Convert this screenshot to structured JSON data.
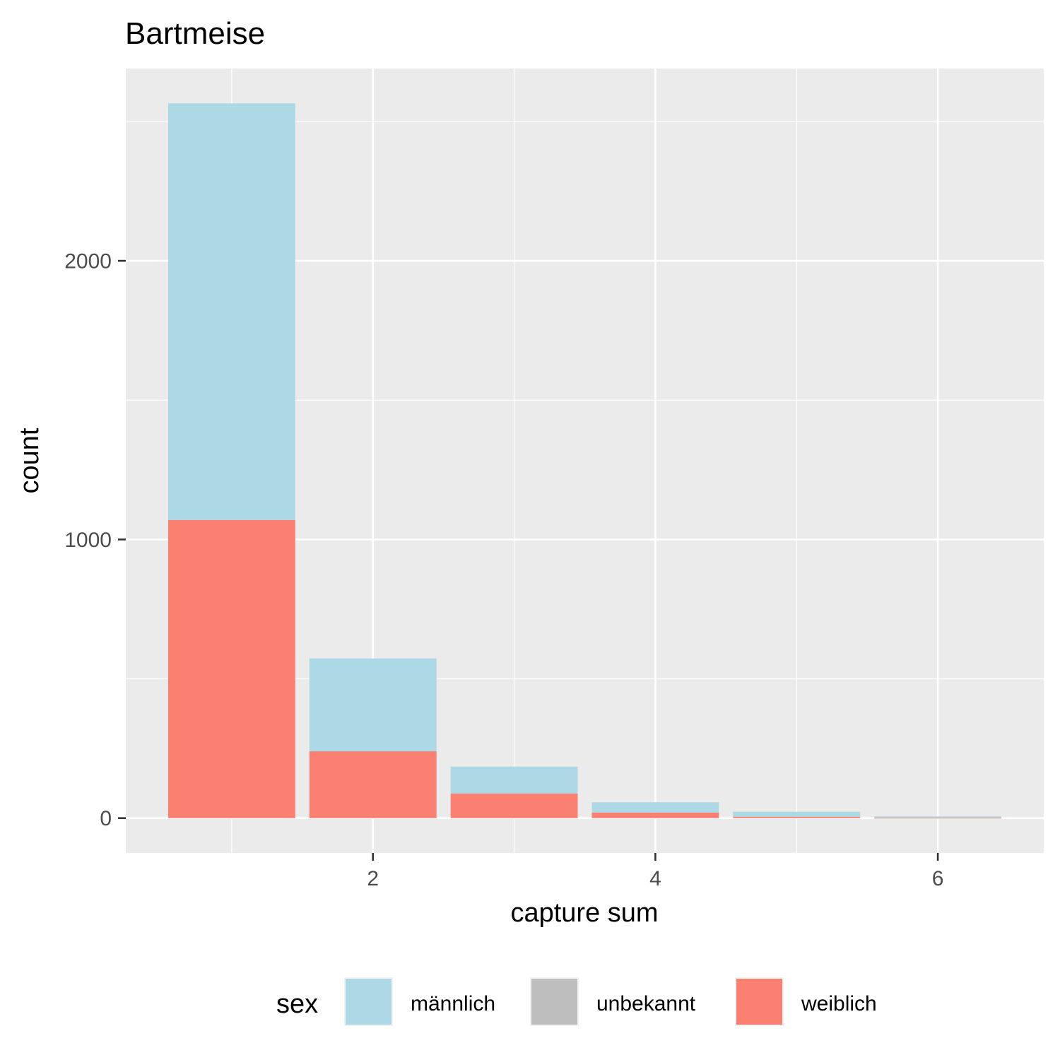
{
  "chart_data": {
    "type": "bar",
    "stacked": true,
    "title": "Bartmeise",
    "xlabel": "capture sum",
    "ylabel": "count",
    "x": [
      1,
      2,
      3,
      4,
      5,
      6
    ],
    "x_ticks": [
      2,
      4,
      6
    ],
    "y_ticks": [
      0,
      1000,
      2000
    ],
    "xlim": [
      0.25,
      6.75
    ],
    "ylim": [
      -125,
      2690
    ],
    "grid": true,
    "legend": {
      "title": "sex",
      "position": "bottom",
      "entries": [
        {
          "label": "männlich",
          "color": "#add8e6"
        },
        {
          "label": "unbekannt",
          "color": "#bebebe"
        },
        {
          "label": "weiblich",
          "color": "#fa8072"
        }
      ]
    },
    "series": [
      {
        "name": "weiblich",
        "color": "#fa8072",
        "values": [
          1070,
          240,
          88,
          20,
          5,
          1
        ]
      },
      {
        "name": "unbekannt",
        "color": "#bebebe",
        "values": [
          0,
          0,
          0,
          0,
          0,
          0
        ]
      },
      {
        "name": "männlich",
        "color": "#add8e6",
        "values": [
          1495,
          333,
          97,
          37,
          18,
          5
        ]
      }
    ]
  }
}
